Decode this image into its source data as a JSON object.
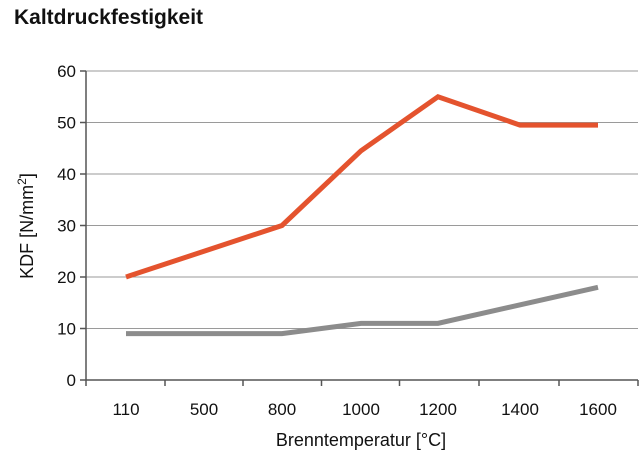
{
  "chart_data": {
    "type": "line",
    "title": "Kaltdruckfestigkeit",
    "xlabel": "Brenntemperatur [°C]",
    "ylabel_main": "KDF [N/mm",
    "ylabel_sup": "2",
    "ylabel_end": "]",
    "categories": [
      "110",
      "500",
      "800",
      "1000",
      "1200",
      "1400",
      "1600"
    ],
    "yticks": [
      "0",
      "10",
      "20",
      "30",
      "40",
      "50",
      "60"
    ],
    "ylim": [
      0,
      60
    ],
    "grid": true,
    "legend": "none",
    "series": [
      {
        "color": "#e4532e",
        "points": [
          {
            "x": "110",
            "y": 20
          },
          {
            "x": "800",
            "y": 30
          },
          {
            "x": "1000",
            "y": 44.5
          },
          {
            "x": "1200",
            "y": 55
          },
          {
            "x": "1400",
            "y": 49.5
          },
          {
            "x": "1600",
            "y": 49.5
          }
        ]
      },
      {
        "color": "#8c8c8c",
        "points": [
          {
            "x": "110",
            "y": 9
          },
          {
            "x": "800",
            "y": 9
          },
          {
            "x": "1000",
            "y": 11
          },
          {
            "x": "1200",
            "y": 11
          },
          {
            "x": "1600",
            "y": 18
          }
        ]
      }
    ]
  }
}
